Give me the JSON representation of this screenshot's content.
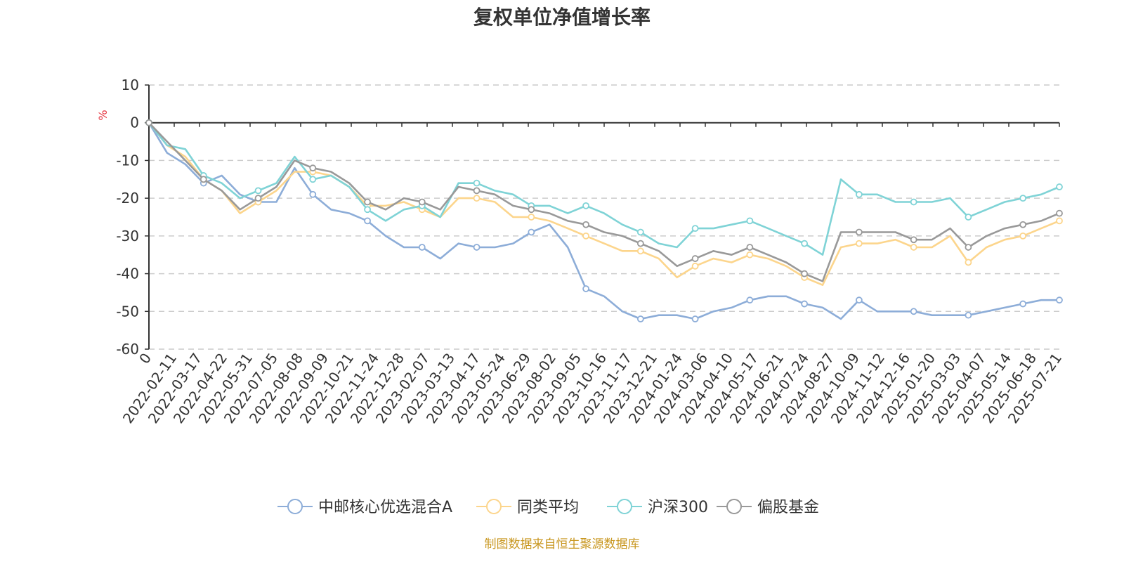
{
  "chart_data": {
    "type": "line",
    "title": "复权单位净值增长率",
    "y_unit": "%",
    "ylim": [
      -60,
      10
    ],
    "yticks": [
      10,
      0,
      -10,
      -20,
      -30,
      -40,
      -50,
      -60
    ],
    "x_tick_labels": [
      "0",
      "2022-02-11",
      "2022-03-17",
      "2022-04-22",
      "2022-05-31",
      "2022-07-05",
      "2022-08-08",
      "2022-09-09",
      "2022-10-21",
      "2022-11-24",
      "2022-12-28",
      "2023-02-07",
      "2023-03-13",
      "2023-04-17",
      "2023-05-24",
      "2023-06-29",
      "2023-08-02",
      "2023-09-05",
      "2023-10-16",
      "2023-11-17",
      "2023-12-21",
      "2024-01-24",
      "2024-03-06",
      "2024-04-10",
      "2024-05-17",
      "2024-06-21",
      "2024-07-24",
      "2024-08-27",
      "2024-10-09",
      "2024-11-12",
      "2024-12-16",
      "2025-01-20",
      "2025-03-03",
      "2025-04-07",
      "2025-05-14",
      "2025-06-18",
      "2025-07-21"
    ],
    "grid": "horizontal-dashed",
    "legend_position": "bottom-center",
    "series": [
      {
        "name": "中邮核心优选混合A",
        "color": "#8dadd8",
        "values": [
          0,
          -8,
          -11,
          -16,
          -14,
          -19,
          -21,
          -21,
          -12,
          -19,
          -23,
          -24,
          -26,
          -30,
          -33,
          -33,
          -36,
          -32,
          -33,
          -33,
          -32,
          -29,
          -27,
          -33,
          -44,
          -46,
          -50,
          -52,
          -51,
          -51,
          -52,
          -50,
          -49,
          -47,
          -46,
          -46,
          -48,
          -49,
          -52,
          -47,
          -50,
          -50,
          -50,
          -51,
          -51,
          -51,
          -50,
          -49,
          -48,
          -47,
          -47
        ]
      },
      {
        "name": "同类平均",
        "color": "#fcd58c",
        "values": [
          0,
          -6,
          -9,
          -15,
          -18,
          -24,
          -21,
          -18,
          -13,
          -13,
          -14,
          -17,
          -22,
          -22,
          -21,
          -23,
          -25,
          -20,
          -20,
          -21,
          -25,
          -25,
          -26,
          -28,
          -30,
          -32,
          -34,
          -34,
          -36,
          -41,
          -38,
          -36,
          -37,
          -35,
          -36,
          -38,
          -41,
          -43,
          -33,
          -32,
          -32,
          -31,
          -33,
          -33,
          -30,
          -37,
          -33,
          -31,
          -30,
          -28,
          -26
        ]
      },
      {
        "name": "沪深300",
        "color": "#7fd3d6",
        "values": [
          0,
          -6,
          -7,
          -14,
          -16,
          -20,
          -18,
          -16,
          -9,
          -15,
          -14,
          -17,
          -23,
          -26,
          -23,
          -22,
          -25,
          -16,
          -16,
          -18,
          -19,
          -22,
          -22,
          -24,
          -22,
          -24,
          -27,
          -29,
          -32,
          -33,
          -28,
          -28,
          -27,
          -26,
          -28,
          -30,
          -32,
          -35,
          -15,
          -19,
          -19,
          -21,
          -21,
          -21,
          -20,
          -25,
          -23,
          -21,
          -20,
          -19,
          -17
        ]
      },
      {
        "name": "偏股基金",
        "color": "#999999",
        "values": [
          0,
          -5,
          -10,
          -15,
          -18,
          -23,
          -20,
          -17,
          -10,
          -12,
          -13,
          -16,
          -21,
          -23,
          -20,
          -21,
          -23,
          -17,
          -18,
          -19,
          -22,
          -23,
          -24,
          -26,
          -27,
          -29,
          -30,
          -32,
          -34,
          -38,
          -36,
          -34,
          -35,
          -33,
          -35,
          -37,
          -40,
          -42,
          -29,
          -29,
          -29,
          -29,
          -31,
          -31,
          -28,
          -33,
          -30,
          -28,
          -27,
          -26,
          -24
        ]
      }
    ]
  },
  "legend": {
    "items": [
      "中邮核心优选混合A",
      "同类平均",
      "沪深300",
      "偏股基金"
    ]
  },
  "footer": {
    "source": "制图数据来自恒生聚源数据库"
  },
  "colors": {
    "axis": "#333333",
    "grid": "#cccccc",
    "source_text": "#c8961e",
    "unit_label": "#e5323e"
  }
}
